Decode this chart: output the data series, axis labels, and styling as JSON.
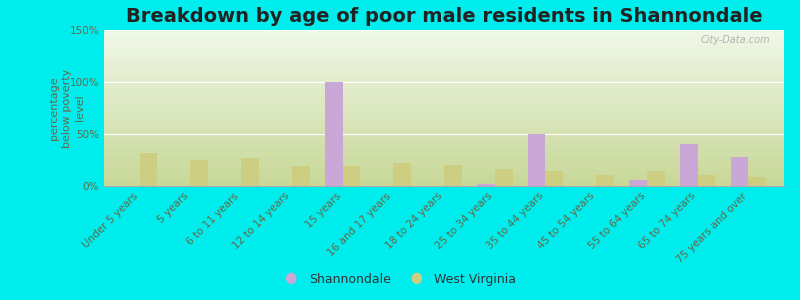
{
  "title": "Breakdown by age of poor male residents in Shannondale",
  "ylabel": "percentage\nbelow poverty\nlevel",
  "categories": [
    "Under 5 years",
    "5 years",
    "6 to 11 years",
    "12 to 14 years",
    "15 years",
    "16 and 17 years",
    "18 to 24 years",
    "25 to 34 years",
    "35 to 44 years",
    "45 to 54 years",
    "55 to 64 years",
    "65 to 74 years",
    "75 years and over"
  ],
  "shannondale": [
    0,
    0,
    0,
    0,
    100,
    0,
    0,
    2,
    50,
    0,
    6,
    40,
    28
  ],
  "west_virginia": [
    32,
    25,
    27,
    19,
    19,
    22,
    20,
    16,
    14,
    11,
    14,
    11,
    9
  ],
  "shannondale_color": "#c9a8d8",
  "west_virginia_color": "#cece82",
  "background_color": "#00eded",
  "plot_bg_top": "#f0f8e8",
  "plot_bg_bottom": "#c8d898",
  "ylim": [
    0,
    150
  ],
  "yticks": [
    0,
    50,
    100,
    150
  ],
  "ytick_labels": [
    "0%",
    "50%",
    "100%",
    "150%"
  ],
  "bar_width": 0.35,
  "title_fontsize": 14,
  "axis_label_fontsize": 8,
  "tick_fontsize": 7.5,
  "watermark": "City-Data.com"
}
